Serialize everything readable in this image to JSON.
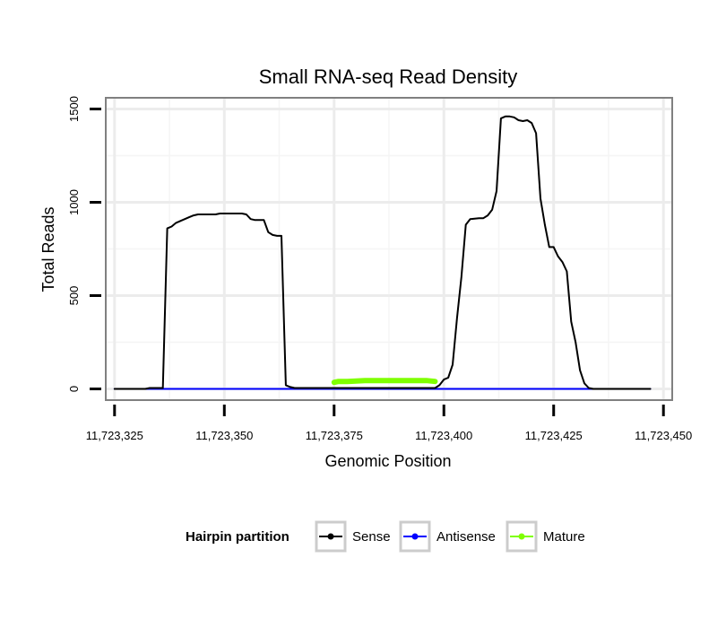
{
  "chart_data": {
    "type": "line",
    "title": "Small RNA-seq Read Density",
    "xlabel": "Genomic Position",
    "ylabel": "Total Reads",
    "xlim": [
      11723323,
      11723452
    ],
    "ylim": [
      -60,
      1560
    ],
    "x_ticks": [
      11723325,
      11723350,
      11723375,
      11723400,
      11723425,
      11723450
    ],
    "x_tick_labels": [
      "11,723,325",
      "11,723,350",
      "11,723,375",
      "11,723,400",
      "11,723,425",
      "11,723,450"
    ],
    "y_ticks": [
      0,
      500,
      1000,
      1500
    ],
    "y_tick_labels": [
      "0",
      "500",
      "1000",
      "1500"
    ],
    "grid": true,
    "legend": {
      "title": "Hairpin partition",
      "position": "bottom"
    },
    "series": [
      {
        "name": "Sense",
        "color": "#000000",
        "x": [
          11723325,
          11723332,
          11723333,
          11723335,
          11723336,
          11723337,
          11723338,
          11723339,
          11723340,
          11723341,
          11723342,
          11723343,
          11723344,
          11723348,
          11723349,
          11723351,
          11723352,
          11723354,
          11723355,
          11723356,
          11723357,
          11723359,
          11723360,
          11723361,
          11723362,
          11723363,
          11723364,
          11723365,
          11723366,
          11723373,
          11723374,
          11723375,
          11723398,
          11723399,
          11723400,
          11723401,
          11723402,
          11723403,
          11723404,
          11723405,
          11723406,
          11723408,
          11723409,
          11723410,
          11723411,
          11723412,
          11723413,
          11723414,
          11723415,
          11723416,
          11723417,
          11723418,
          11723419,
          11723420,
          11723421,
          11723422,
          11723423,
          11723424,
          11723425,
          11723426,
          11723427,
          11723428,
          11723429,
          11723430,
          11723431,
          11723432,
          11723433,
          11723434,
          11723435,
          11723447
        ],
        "values": [
          0,
          0,
          5,
          5,
          5,
          860,
          870,
          890,
          900,
          910,
          920,
          930,
          935,
          935,
          940,
          940,
          940,
          940,
          935,
          910,
          905,
          905,
          840,
          825,
          820,
          820,
          20,
          10,
          5,
          5,
          5,
          5,
          5,
          20,
          50,
          60,
          130,
          380,
          600,
          880,
          910,
          915,
          915,
          930,
          960,
          1060,
          1450,
          1460,
          1460,
          1455,
          1440,
          1435,
          1440,
          1425,
          1370,
          1020,
          880,
          760,
          760,
          710,
          680,
          630,
          360,
          250,
          100,
          30,
          5,
          0,
          0,
          0
        ]
      },
      {
        "name": "Antisense",
        "color": "#0000ff",
        "x": [
          11723325,
          11723447
        ],
        "values": [
          0,
          0
        ]
      },
      {
        "name": "Mature",
        "color": "#7fff00",
        "x": [
          11723375,
          11723376,
          11723378,
          11723380,
          11723382,
          11723384,
          11723386,
          11723388,
          11723390,
          11723392,
          11723394,
          11723396,
          11723398
        ],
        "values": [
          35,
          40,
          40,
          42,
          45,
          45,
          45,
          45,
          45,
          45,
          45,
          45,
          40
        ]
      }
    ]
  }
}
